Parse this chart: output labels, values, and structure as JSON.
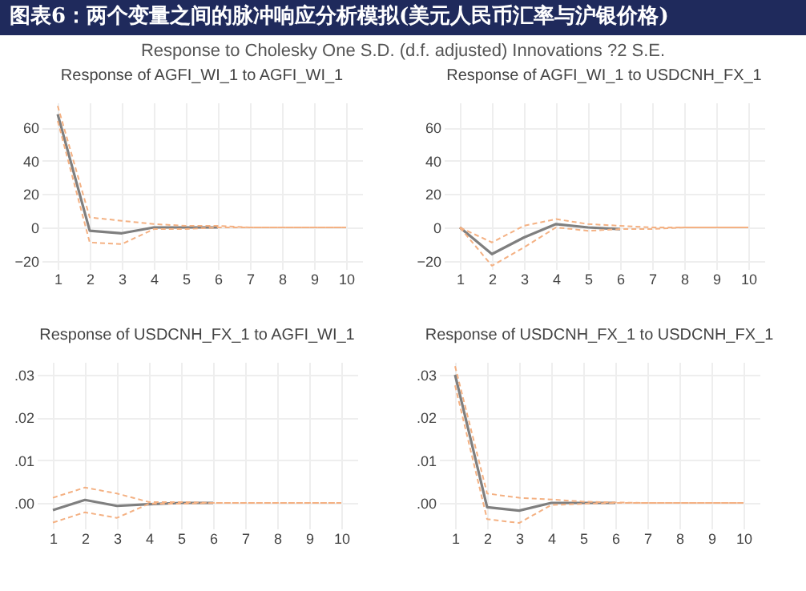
{
  "chart_data": [
    {
      "type": "other",
      "title": "图表6：两个变量之间的脉冲响应分析模拟(美元人民币汇率与沪银价格)",
      "subtitle": "Response to Cholesky One S.D. (d.f. adjusted) Innovations ?2 S.E."
    },
    {
      "type": "line",
      "title": "Response of AGFI_WI_1 to AGFI_WI_1",
      "categories": [
        "1",
        "2",
        "3",
        "4",
        "5",
        "6",
        "7",
        "8",
        "9",
        "10"
      ],
      "ylim": [
        -25,
        75
      ],
      "yticks": [
        -20,
        0,
        20,
        40,
        60
      ],
      "grid": true,
      "series": [
        {
          "color": "#7f7f7f",
          "values": [
            68,
            -2,
            -3.5,
            0,
            0,
            0,
            null,
            null,
            null,
            null
          ]
        },
        {
          "color": "#f4b183",
          "line_style": "dashed",
          "values": [
            73,
            6,
            4,
            2,
            1,
            1,
            0,
            0,
            0,
            0
          ]
        },
        {
          "color": "#f4b183",
          "line_style": "dashed",
          "values": [
            64,
            -9,
            -10,
            -1,
            -1,
            0,
            0,
            0,
            0,
            0
          ]
        }
      ]
    },
    {
      "type": "line",
      "title": "Response of AGFI_WI_1 to USDCNH_FX_1",
      "categories": [
        "1",
        "2",
        "3",
        "4",
        "5",
        "6",
        "7",
        "8",
        "9",
        "10"
      ],
      "ylim": [
        -25,
        75
      ],
      "yticks": [
        -20,
        0,
        20,
        40,
        60
      ],
      "grid": true,
      "series": [
        {
          "color": "#7f7f7f",
          "values": [
            0,
            -16,
            -6,
            2,
            0,
            -1,
            null,
            null,
            null,
            null
          ]
        },
        {
          "color": "#f4b183",
          "line_style": "dashed",
          "values": [
            0,
            -9,
            1,
            5,
            2,
            1,
            0,
            0,
            0,
            0
          ]
        },
        {
          "color": "#f4b183",
          "line_style": "dashed",
          "values": [
            0,
            -23,
            -12,
            0,
            -2,
            -1,
            -1,
            0,
            0,
            0
          ]
        }
      ]
    },
    {
      "type": "line",
      "title": "Response of USDCNH_FX_1 to AGFI_WI_1",
      "categories": [
        "1",
        "2",
        "3",
        "4",
        "5",
        "6",
        "7",
        "8",
        "9",
        "10"
      ],
      "ylim": [
        -0.006,
        0.033
      ],
      "yticks": [
        {
          "value": 0,
          "label": ".00"
        },
        {
          "value": 0.01,
          "label": ".01"
        },
        {
          "value": 0.02,
          "label": ".02"
        },
        {
          "value": 0.03,
          "label": ".03"
        }
      ],
      "grid": true,
      "series": [
        {
          "color": "#7f7f7f",
          "values": [
            -0.0017,
            0.0007,
            -0.0007,
            -0.0003,
            0,
            0,
            null,
            null,
            null,
            null
          ]
        },
        {
          "color": "#f4b183",
          "line_style": "dashed",
          "values": [
            0.0012,
            0.0036,
            0.0022,
            0.0002,
            0.0002,
            0,
            0,
            0,
            0,
            0
          ]
        },
        {
          "color": "#f4b183",
          "line_style": "dashed",
          "values": [
            -0.0046,
            -0.0022,
            -0.0035,
            -0.0002,
            -0.0002,
            0,
            0,
            0,
            0,
            0
          ]
        }
      ]
    },
    {
      "type": "line",
      "title": "Response of USDCNH_FX_1 to USDCNH_FX_1",
      "categories": [
        "1",
        "2",
        "3",
        "4",
        "5",
        "6",
        "7",
        "8",
        "9",
        "10"
      ],
      "ylim": [
        -0.006,
        0.033
      ],
      "yticks": [
        {
          "value": 0,
          "label": ".00"
        },
        {
          "value": 0.01,
          "label": ".01"
        },
        {
          "value": 0.02,
          "label": ".02"
        },
        {
          "value": 0.03,
          "label": ".03"
        }
      ],
      "grid": true,
      "series": [
        {
          "color": "#7f7f7f",
          "values": [
            0.03,
            -0.001,
            -0.0018,
            0,
            0,
            0,
            null,
            null,
            null,
            null
          ]
        },
        {
          "color": "#f4b183",
          "line_style": "dashed",
          "values": [
            0.032,
            0.0022,
            0.0012,
            0.0008,
            0.0003,
            0.0001,
            0,
            0,
            0,
            0
          ]
        },
        {
          "color": "#f4b183",
          "line_style": "dashed",
          "values": [
            0.0275,
            -0.0038,
            -0.0047,
            -0.0005,
            -0.0002,
            0,
            0,
            0,
            0,
            0
          ]
        }
      ]
    }
  ]
}
